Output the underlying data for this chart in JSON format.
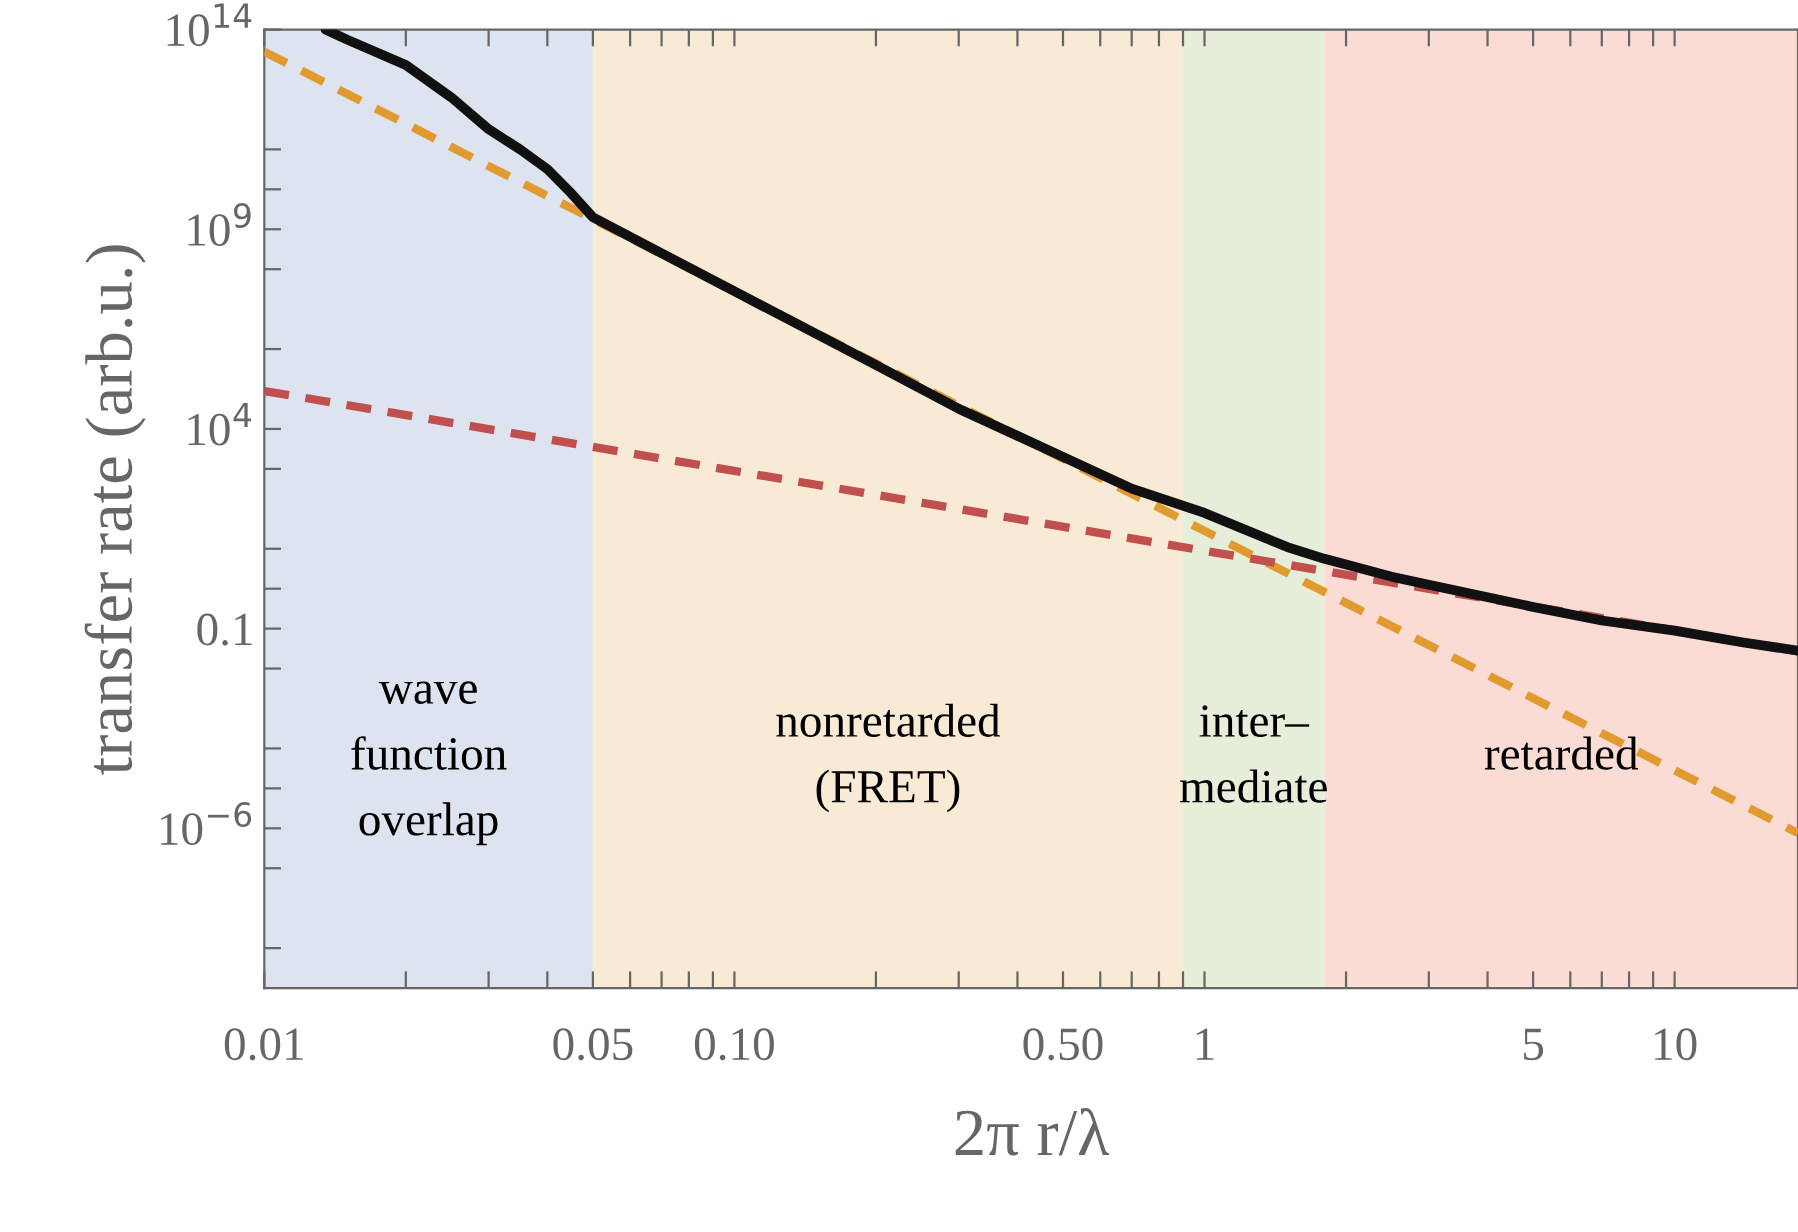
{
  "chart_data": {
    "type": "line",
    "xlabel": "2π r/λ",
    "ylabel": "transfer rate (arb.u.)",
    "log": "xy",
    "grid": false,
    "xlim": [
      0.01,
      18.3
    ],
    "ylim": [
      1e-10,
      100000000000000.0
    ],
    "xticks": [
      0.01,
      {
        "value": 0.02,
        "label": null
      },
      {
        "value": 0.03,
        "label": null
      },
      {
        "value": 0.04,
        "label": null
      },
      0.05,
      {
        "value": 0.06,
        "label": null
      },
      {
        "value": 0.07,
        "label": null
      },
      {
        "value": 0.08,
        "label": null
      },
      {
        "value": 0.09,
        "label": null
      },
      {
        "value": 0.1,
        "label": "0.10"
      },
      {
        "value": 0.2,
        "label": null
      },
      {
        "value": 0.3,
        "label": null
      },
      {
        "value": 0.4,
        "label": null
      },
      {
        "value": 0.5,
        "label": "0.50"
      },
      {
        "value": 0.6,
        "label": null
      },
      {
        "value": 0.7,
        "label": null
      },
      {
        "value": 0.8,
        "label": null
      },
      {
        "value": 0.9,
        "label": null
      },
      1,
      {
        "value": 2,
        "label": null
      },
      {
        "value": 3,
        "label": null
      },
      {
        "value": 4,
        "label": null
      },
      5,
      {
        "value": 6,
        "label": null
      },
      {
        "value": 7,
        "label": null
      },
      {
        "value": 8,
        "label": null
      },
      {
        "value": 9,
        "label": null
      },
      10
    ],
    "yticks": [
      {
        "value": 1e-09,
        "label": null
      },
      {
        "value": 1e-07,
        "label": null
      },
      {
        "value": 1e-06,
        "label": "10$^{−6}$"
      },
      {
        "value": 1e-05,
        "label": null
      },
      {
        "value": 0.0001,
        "label": null
      },
      {
        "value": 0.01,
        "label": null
      },
      0.1,
      {
        "value": 1,
        "label": null
      },
      {
        "value": 10,
        "label": null
      },
      {
        "value": 1000,
        "label": null
      },
      {
        "value": 10000.0,
        "label": "10$^{4}$"
      },
      {
        "value": 1000000.0,
        "label": null
      },
      {
        "value": 100000000.0,
        "label": null
      },
      {
        "value": 1000000000.0,
        "label": "10$^{9}$"
      },
      {
        "value": 10000000000.0,
        "label": null
      },
      {
        "value": 100000000000.0,
        "label": null
      },
      {
        "value": 100000000000000.0,
        "label": "10$^{14}$"
      }
    ],
    "bands": [
      {
        "axis": "x",
        "from": 0.01,
        "to": 0.05,
        "label": "wave\nfunction\noverlap",
        "color": "#dde3ef"
      },
      {
        "axis": "x",
        "from": 0.05,
        "to": 0.9,
        "label": "nonretarded\n(FRET)",
        "color": "#f8ead4"
      },
      {
        "axis": "x",
        "from": 0.9,
        "to": 1.8,
        "label": "inter–\nmediate",
        "color": "#e6edd8"
      },
      {
        "axis": "x",
        "from": 1.8,
        "to": 18.3,
        "label": "retarded",
        "color": "#fadcd5"
      }
    ],
    "series": [
      {
        "color": "#e09a30",
        "line_style": "dashed",
        "x": [
          0.01,
          0.1,
          1,
          18.3
        ],
        "values": [
          28000000000000.0,
          28000000.0,
          28,
          7.6e-07
        ]
      },
      {
        "color": "#c0504d",
        "line_style": "dashed",
        "x": [
          0.01,
          0.1,
          1,
          18.3
        ],
        "values": [
          89000.0,
          890,
          8.9,
          0.027
        ]
      },
      {
        "color": "#111111",
        "line_style": "solid",
        "x": [
          0.0135,
          0.015,
          0.02,
          0.025,
          0.03,
          0.035,
          0.04,
          0.045,
          0.05,
          0.07,
          0.1,
          0.2,
          0.3,
          0.5,
          0.7,
          1,
          1.5,
          1.8,
          2.5,
          3,
          5,
          7,
          10,
          14,
          18.3
        ],
        "values": [
          100000000000000.0,
          56000000000000.0,
          13000000000000.0,
          2000000000000.0,
          320000000000.0,
          100000000000.0,
          32000000000.0,
          7900000000.0,
          2000000000.0,
          250000000.0,
          28000000.0,
          400000.0,
          32000.0,
          2000,
          320,
          79,
          11,
          5.6,
          2,
          1.26,
          0.35,
          0.16,
          0.089,
          0.045,
          0.028
        ]
      }
    ]
  }
}
